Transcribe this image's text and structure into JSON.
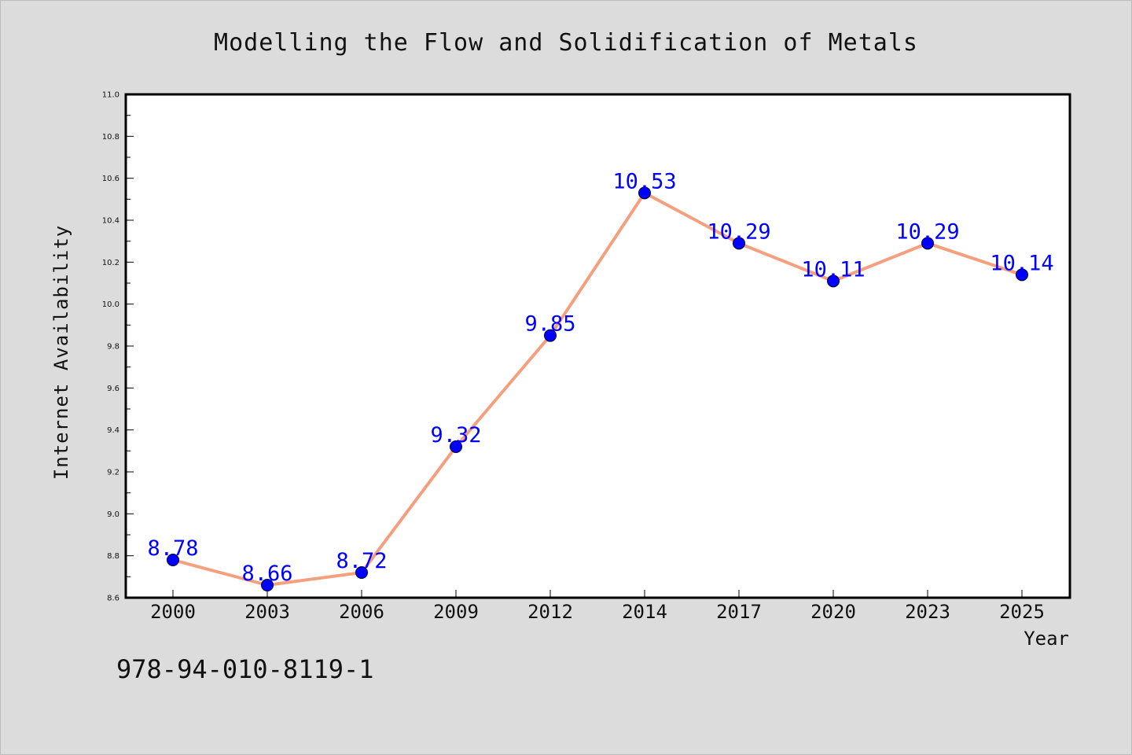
{
  "footnote": "978-94-010-8119-1",
  "colors": {
    "background": "#dcdcdc",
    "plot_background": "#ffffff",
    "line": "#f4a07f",
    "marker": "#0000ff",
    "data_label": "#0000ff"
  },
  "chart_data": {
    "type": "line",
    "title": "Modelling the Flow and Solidification of Metals",
    "xlabel": "Year",
    "ylabel": "Internet Availability",
    "categories": [
      "2000",
      "2003",
      "2006",
      "2009",
      "2012",
      "2014",
      "2017",
      "2020",
      "2023",
      "2025"
    ],
    "series": [
      {
        "values": [
          8.78,
          8.66,
          8.72,
          9.32,
          9.85,
          10.53,
          10.29,
          10.11,
          10.29,
          10.14
        ],
        "labels": [
          "8.78",
          "8.66",
          "8.72",
          "9.32",
          "9.85",
          "10.53",
          "10.29",
          "10.11",
          "10.29",
          "10.14"
        ]
      }
    ],
    "ylim": [
      8.6,
      11.0
    ],
    "yticks": [
      "8.6",
      "8.8",
      "9.0",
      "9.2",
      "9.4",
      "9.6",
      "9.8",
      "10.0",
      "10.2",
      "10.4",
      "10.6",
      "10.8",
      "11.0"
    ],
    "grid": false,
    "legend": "none",
    "marker": "circle"
  }
}
